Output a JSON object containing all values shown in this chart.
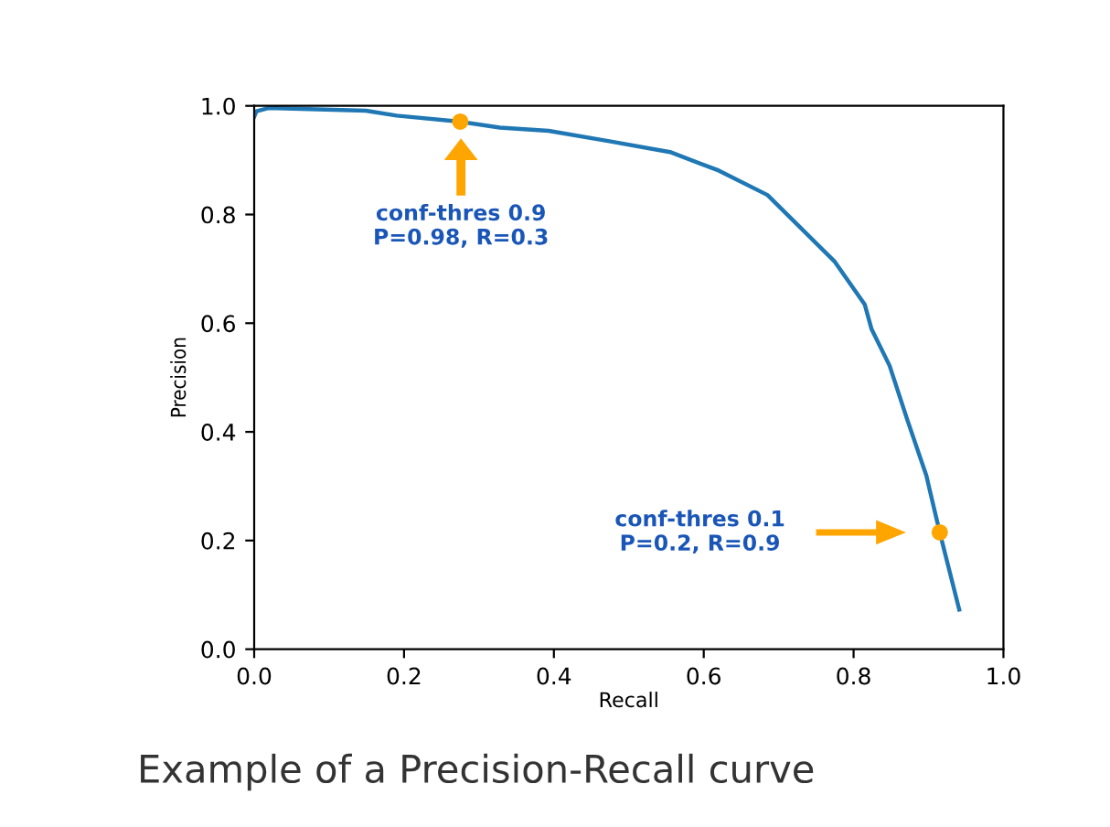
{
  "chart_data": {
    "type": "line",
    "xlabel": "Recall",
    "ylabel": "Precision",
    "xlim": [
      0.0,
      1.0
    ],
    "ylim": [
      0.0,
      1.0
    ],
    "xticks": [
      {
        "value": 0.0,
        "label": "0.0"
      },
      0.2,
      0.4,
      0.6,
      0.8,
      {
        "value": 1.0,
        "label": "1.0"
      }
    ],
    "yticks": [
      {
        "value": 0.0,
        "label": "0.0"
      },
      0.2,
      0.4,
      0.6,
      0.8,
      {
        "value": 1.0,
        "label": "1.0"
      }
    ],
    "grid": false,
    "legend": false,
    "series": [
      {
        "color": "#1f77b4",
        "x": [
          0.0,
          0.003,
          0.019,
          0.149,
          0.19,
          0.275,
          0.328,
          0.393,
          0.474,
          0.555,
          0.62,
          0.685,
          0.718,
          0.775,
          0.815,
          0.824,
          0.848,
          0.872,
          0.897,
          0.915,
          0.941
        ],
        "values": [
          0.98,
          0.99,
          0.996,
          0.991,
          0.982,
          0.971,
          0.96,
          0.954,
          0.935,
          0.915,
          0.881,
          0.836,
          0.791,
          0.713,
          0.634,
          0.589,
          0.522,
          0.421,
          0.32,
          0.215,
          0.073
        ]
      },
      {
        "type": "scatter",
        "color": "#ffa500",
        "marker": "circle",
        "x": [
          0.275,
          0.915
        ],
        "values": [
          0.971,
          0.215
        ]
      }
    ],
    "annotations": [
      "conf-thres 0.9\nP=0.98, R=0.3",
      "conf-thres 0.1\nP=0.2, R=0.9",
      "Example of a Precision-Recall curve"
    ]
  }
}
